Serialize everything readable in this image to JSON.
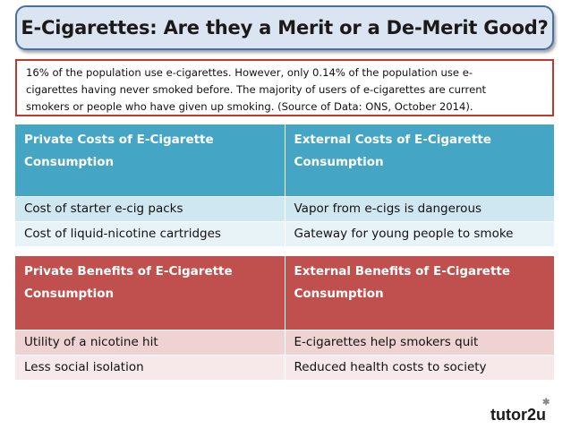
{
  "title": "E-Cigarettes: Are they a Merit or a De-Merit Good?",
  "note": {
    "line1": "16% of the population use e-cigarettes.  However, only 0.14% of the population use e-",
    "line2": "cigarettes having never smoked before.  The majority of users of e-cigarettes are current",
    "line3": "smokers or people who have given up smoking. (Source of Data: ONS, October 2014)."
  },
  "costs": {
    "header_private": "Private Costs of E-Cigarette Consumption",
    "header_external": "External Costs of E-Cigarette Consumption",
    "rows": [
      {
        "private": "Cost of starter e-cig packs",
        "external": "Vapor from e-cigs is dangerous"
      },
      {
        "private": "Cost of liquid-nicotine cartridges",
        "external": "Gateway for young people to smoke"
      }
    ]
  },
  "benefits": {
    "header_private": "Private Benefits of E-Cigarette Consumption",
    "header_external": "External Benefits of E-Cigarette Consumption",
    "rows": [
      {
        "private": "Utility of a nicotine hit",
        "external": "E-cigarettes help smokers quit"
      },
      {
        "private": "Less social isolation",
        "external": "Reduced health costs to society"
      }
    ]
  },
  "logo": {
    "brand": "tutor2u",
    "mark": "✱"
  },
  "colors": {
    "title_bg": "#dbe4f1",
    "cost_header": "#45a5c4",
    "benefit_header": "#c0504d",
    "note_border": "#c0392b"
  }
}
